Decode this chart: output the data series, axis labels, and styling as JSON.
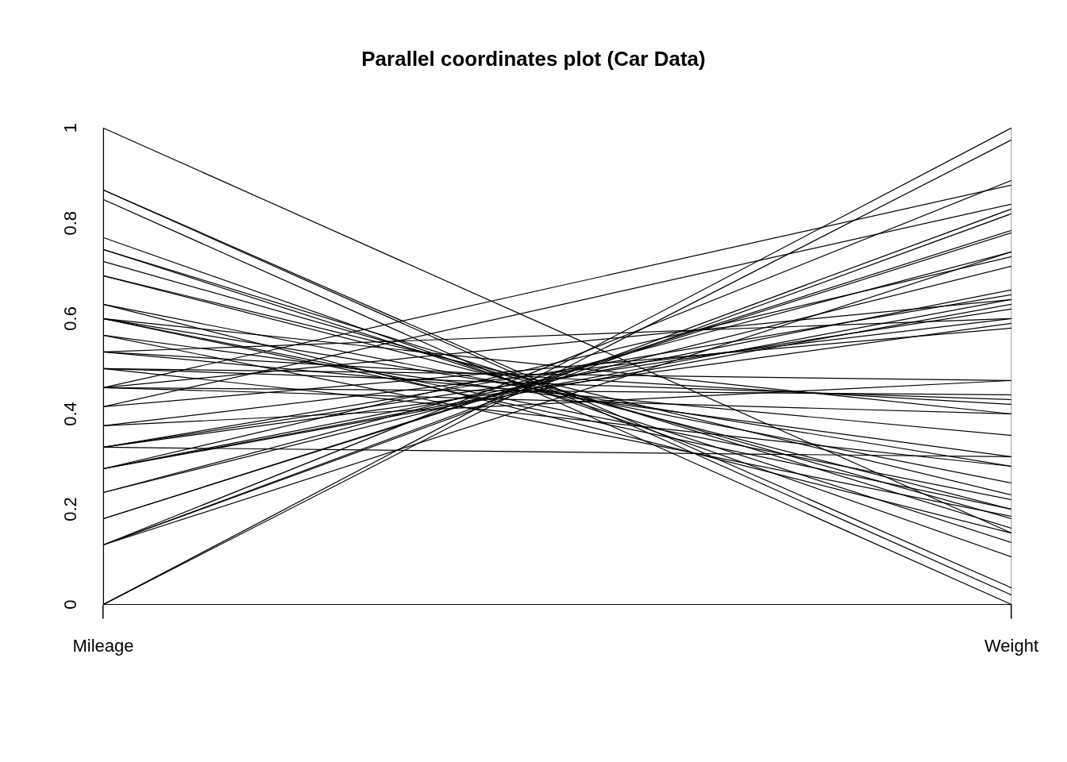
{
  "chart_data": {
    "type": "line",
    "title": "Parallel coordinates plot (Car Data)",
    "categories": [
      "Mileage",
      "Weight"
    ],
    "ylim": [
      0,
      1
    ],
    "yticks": [
      0,
      0.2,
      0.4,
      0.6,
      0.8,
      1
    ],
    "grid": "x",
    "legend": false,
    "marker": "none",
    "line_style": "solid",
    "series": [
      {
        "color": "#000000",
        "values": [
          1,
          0.15
        ]
      },
      {
        "color": "#000000",
        "values": [
          0.87,
          0.02
        ]
      },
      {
        "color": "#000000",
        "values": [
          0.87,
          0.035
        ]
      },
      {
        "color": "#000000",
        "values": [
          0.85,
          0
        ]
      },
      {
        "color": "#000000",
        "values": [
          0.77,
          0.1
        ]
      },
      {
        "color": "#000000",
        "values": [
          0.745,
          0.13
        ]
      },
      {
        "color": "#000000",
        "values": [
          0.745,
          0.16
        ]
      },
      {
        "color": "#000000",
        "values": [
          0.72,
          0.18
        ]
      },
      {
        "color": "#000000",
        "values": [
          0.69,
          0.2
        ]
      },
      {
        "color": "#000000",
        "values": [
          0.69,
          0.23
        ]
      },
      {
        "color": "#000000",
        "values": [
          0.63,
          0.15
        ]
      },
      {
        "color": "#000000",
        "values": [
          0.63,
          0.255
        ]
      },
      {
        "color": "#000000",
        "values": [
          0.6,
          0.29
        ]
      },
      {
        "color": "#000000",
        "values": [
          0.6,
          0.22
        ]
      },
      {
        "color": "#000000",
        "values": [
          0.6,
          0.4
        ]
      },
      {
        "color": "#000000",
        "values": [
          0.6,
          0.2
        ]
      },
      {
        "color": "#000000",
        "values": [
          0.565,
          0.31
        ]
      },
      {
        "color": "#000000",
        "values": [
          0.565,
          0.185
        ]
      },
      {
        "color": "#000000",
        "values": [
          0.53,
          0.42
        ]
      },
      {
        "color": "#000000",
        "values": [
          0.53,
          0.355
        ]
      },
      {
        "color": "#000000",
        "values": [
          0.53,
          0.6
        ]
      },
      {
        "color": "#000000",
        "values": [
          0.495,
          0.43
        ]
      },
      {
        "color": "#000000",
        "values": [
          0.495,
          0.47
        ]
      },
      {
        "color": "#000000",
        "values": [
          0.495,
          0.29
        ]
      },
      {
        "color": "#000000",
        "values": [
          0.455,
          0.4
        ]
      },
      {
        "color": "#000000",
        "values": [
          0.455,
          0.88
        ]
      },
      {
        "color": "#000000",
        "values": [
          0.455,
          0.44
        ]
      },
      {
        "color": "#000000",
        "values": [
          0.455,
          0.64
        ]
      },
      {
        "color": "#000000",
        "values": [
          0.415,
          0.84
        ]
      },
      {
        "color": "#000000",
        "values": [
          0.415,
          0.58
        ]
      },
      {
        "color": "#000000",
        "values": [
          0.375,
          0.6
        ]
      },
      {
        "color": "#000000",
        "values": [
          0.375,
          0.47
        ]
      },
      {
        "color": "#000000",
        "values": [
          0.33,
          0.62
        ]
      },
      {
        "color": "#000000",
        "values": [
          0.33,
          0.65
        ]
      },
      {
        "color": "#000000",
        "values": [
          0.33,
          0.59
        ]
      },
      {
        "color": "#000000",
        "values": [
          0.33,
          0.31
        ]
      },
      {
        "color": "#000000",
        "values": [
          0.285,
          0.64
        ]
      },
      {
        "color": "#000000",
        "values": [
          0.285,
          0.63
        ]
      },
      {
        "color": "#000000",
        "values": [
          0.285,
          0.66
        ]
      },
      {
        "color": "#000000",
        "values": [
          0.285,
          0.73
        ]
      },
      {
        "color": "#000000",
        "values": [
          0.235,
          0.71
        ]
      },
      {
        "color": "#000000",
        "values": [
          0.235,
          0.74
        ]
      },
      {
        "color": "#000000",
        "values": [
          0.18,
          0.78
        ]
      },
      {
        "color": "#000000",
        "values": [
          0.18,
          0.785
        ]
      },
      {
        "color": "#000000",
        "values": [
          0.125,
          0.82
        ]
      },
      {
        "color": "#000000",
        "values": [
          0.125,
          0.83
        ]
      },
      {
        "color": "#000000",
        "values": [
          0.125,
          0.74
        ]
      },
      {
        "color": "#000000",
        "values": [
          0.125,
          0.89
        ]
      },
      {
        "color": "#000000",
        "values": [
          0,
          1
        ]
      },
      {
        "color": "#000000",
        "values": [
          0,
          0.975
        ]
      }
    ]
  }
}
